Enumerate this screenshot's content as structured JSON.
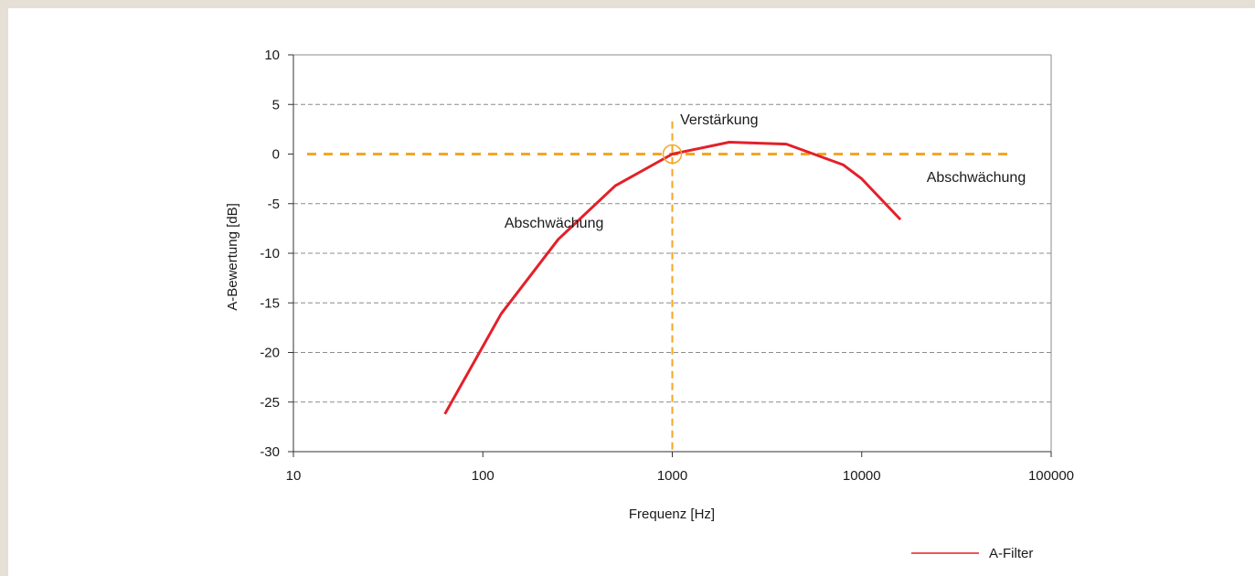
{
  "chart_data": {
    "type": "line",
    "xlabel": "Frequenz [Hz]",
    "ylabel": "A-Bewertung [dB]",
    "x_scale": "log",
    "xlim": [
      10,
      100000
    ],
    "ylim": [
      -30,
      10
    ],
    "x_ticks": [
      "10",
      "100",
      "1000",
      "10000",
      "100000"
    ],
    "y_ticks": [
      "10",
      "5",
      "0",
      "-5",
      "-10",
      "-15",
      "-20",
      "-25",
      "-30"
    ],
    "grid": "horizontal dashed",
    "legend_position": "bottom-right",
    "colors": {
      "series": "#e3202a",
      "reference": "#f5a623",
      "grid": "#8c8c8c",
      "axis": "#333333",
      "frame": "#e6dfd6"
    },
    "series": [
      {
        "name": "A-Filter",
        "x": [
          63,
          125,
          250,
          500,
          1000,
          2000,
          4000,
          8000,
          10000,
          16000
        ],
        "y": [
          -26.2,
          -16.1,
          -8.6,
          -3.2,
          0.0,
          1.2,
          1.0,
          -1.1,
          -2.5,
          -6.6
        ]
      }
    ],
    "reference_lines": {
      "horizontal_y": 0,
      "vertical_x": 1000,
      "marker": {
        "x": 1000,
        "y": 0
      }
    },
    "annotations": [
      {
        "text": "Verstärkung",
        "x": 1100,
        "y": 3
      },
      {
        "text": "Abschwächung",
        "x": 130,
        "y": -7.4
      },
      {
        "text": "Abschwächung",
        "x": 22000,
        "y": -2.8
      }
    ]
  }
}
